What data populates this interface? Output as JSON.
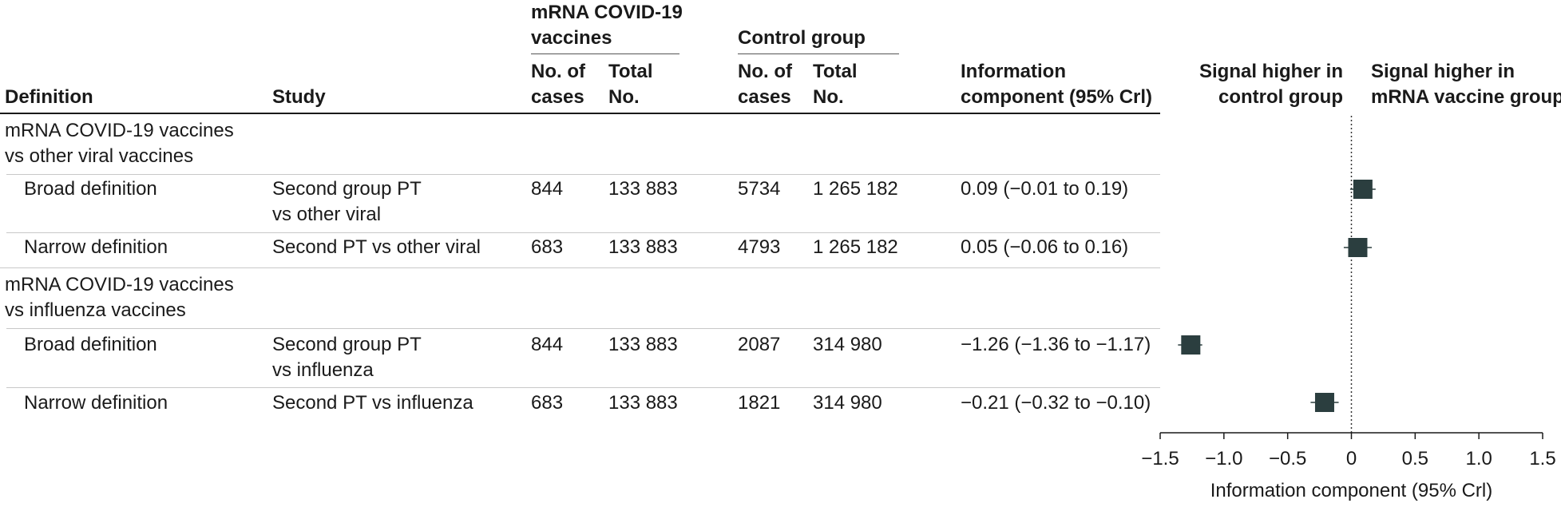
{
  "headers": {
    "definition": "Definition",
    "study": "Study",
    "mrna_group": [
      "mRNA COVID-19",
      "vaccines"
    ],
    "control_group": "Control group",
    "cases": [
      "No. of",
      "cases"
    ],
    "total": [
      "Total",
      "No."
    ],
    "ic": [
      "Information",
      "component (95% Crl)"
    ]
  },
  "sections": [
    {
      "title": [
        "mRNA COVID-19 vaccines",
        "vs other viral vaccines"
      ],
      "rows": [
        {
          "definition": "Broad definition",
          "study": [
            "Second group PT",
            "vs other viral"
          ],
          "mrna_cases": "844",
          "mrna_total": "133 883",
          "ctrl_cases": "5734",
          "ctrl_total": "1 265 182",
          "ic": "0.09 (−0.01 to 0.19)"
        },
        {
          "definition": "Narrow definition",
          "study": [
            "Second PT vs other viral"
          ],
          "mrna_cases": "683",
          "mrna_total": "133 883",
          "ctrl_cases": "4793",
          "ctrl_total": "1 265 182",
          "ic": "0.05 (−0.06 to 0.16)"
        }
      ]
    },
    {
      "title": [
        "mRNA COVID-19 vaccines",
        "vs influenza vaccines"
      ],
      "rows": [
        {
          "definition": "Broad definition",
          "study": [
            "Second group PT",
            "vs influenza"
          ],
          "mrna_cases": "844",
          "mrna_total": "133 883",
          "ctrl_cases": "2087",
          "ctrl_total": "314 980",
          "ic": "−1.26 (−1.36 to −1.17)"
        },
        {
          "definition": "Narrow definition",
          "study": [
            "Second PT vs influenza"
          ],
          "mrna_cases": "683",
          "mrna_total": "133 883",
          "ctrl_cases": "1821",
          "ctrl_total": "314 980",
          "ic": "−0.21 (−0.32 to −0.10)"
        }
      ]
    }
  ],
  "plot": {
    "left_label": [
      "Signal higher in",
      "control group"
    ],
    "right_label": [
      "Signal higher in",
      "mRNA vaccine group"
    ]
  },
  "chart_data": {
    "type": "scatter",
    "subtype": "forest",
    "xlabel": "Information component (95% Crl)",
    "xlim": [
      -1.5,
      1.5
    ],
    "xticks": [
      -1.5,
      -1.0,
      -0.5,
      0,
      0.5,
      1.0,
      1.5
    ],
    "xtick_labels": [
      "−1.5",
      "−1.0",
      "−0.5",
      "0",
      "0.5",
      "1.0",
      "1.5"
    ],
    "reference_line": 0,
    "points": [
      {
        "estimate": 0.09,
        "lower": -0.01,
        "upper": 0.19
      },
      {
        "estimate": 0.05,
        "lower": -0.06,
        "upper": 0.16
      },
      {
        "estimate": -1.26,
        "lower": -1.36,
        "upper": -1.17
      },
      {
        "estimate": -0.21,
        "lower": -0.32,
        "upper": -0.1
      }
    ],
    "marker_color": "#2b3e3f"
  }
}
